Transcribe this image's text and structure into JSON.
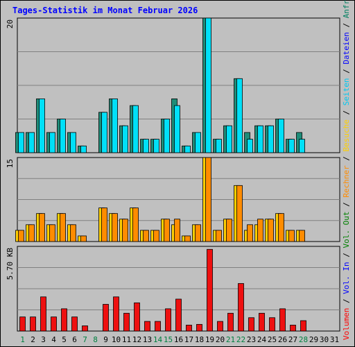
{
  "chart_data": {
    "type": "bar",
    "title": "Tages-Statistik im Monat Februar 2026",
    "days": [
      {
        "label": "1",
        "weekend": true
      },
      {
        "label": "2",
        "weekend": false
      },
      {
        "label": "3",
        "weekend": false
      },
      {
        "label": "4",
        "weekend": false
      },
      {
        "label": "5",
        "weekend": false
      },
      {
        "label": "6",
        "weekend": false
      },
      {
        "label": "7",
        "weekend": true
      },
      {
        "label": "8",
        "weekend": true
      },
      {
        "label": "9",
        "weekend": false
      },
      {
        "label": "10",
        "weekend": false
      },
      {
        "label": "11",
        "weekend": false
      },
      {
        "label": "12",
        "weekend": false
      },
      {
        "label": "13",
        "weekend": false
      },
      {
        "label": "14",
        "weekend": true
      },
      {
        "label": "15",
        "weekend": true
      },
      {
        "label": "16",
        "weekend": false
      },
      {
        "label": "17",
        "weekend": false
      },
      {
        "label": "18",
        "weekend": false
      },
      {
        "label": "19",
        "weekend": false
      },
      {
        "label": "20",
        "weekend": false
      },
      {
        "label": "21",
        "weekend": true
      },
      {
        "label": "22",
        "weekend": true
      },
      {
        "label": "23",
        "weekend": false
      },
      {
        "label": "24",
        "weekend": false
      },
      {
        "label": "25",
        "weekend": false
      },
      {
        "label": "26",
        "weekend": false
      },
      {
        "label": "27",
        "weekend": false
      },
      {
        "label": "28",
        "weekend": true
      },
      {
        "label": "29",
        "weekend": false
      },
      {
        "label": "30",
        "weekend": false
      },
      {
        "label": "31",
        "weekend": false
      }
    ],
    "panels": [
      {
        "ymax_label": "20",
        "ymax": 20,
        "series": [
          {
            "name": "Anfragen",
            "color": "#1e8c78",
            "values": [
              3,
              3,
              8,
              3,
              5,
              3,
              1,
              0,
              6,
              8,
              4,
              7,
              2,
              2,
              5,
              8,
              1,
              3,
              20,
              2,
              4,
              11,
              3,
              4,
              4,
              5,
              2,
              3,
              0,
              0,
              0
            ]
          },
          {
            "name": "Dateien",
            "color": "#00e0f8",
            "values": [
              3,
              3,
              8,
              3,
              5,
              3,
              1,
              0,
              6,
              8,
              4,
              7,
              2,
              2,
              5,
              7,
              1,
              3,
              20,
              2,
              4,
              11,
              2,
              4,
              4,
              5,
              2,
              2,
              0,
              0,
              0
            ]
          },
          {
            "name": "Seiten",
            "color": "#00c8f0",
            "values": [
              0,
              0,
              0,
              0,
              0,
              0,
              0,
              0,
              0,
              0,
              0,
              0,
              0,
              0,
              0,
              0,
              0,
              0,
              0,
              0,
              0,
              0,
              0,
              0,
              0,
              0,
              0,
              0,
              0,
              0,
              0
            ]
          }
        ]
      },
      {
        "ymax_label": "15",
        "ymax": 15,
        "series": [
          {
            "name": "Besuche",
            "color": "#ffd000",
            "values": [
              2,
              3,
              5,
              3,
              5,
              3,
              1,
              0,
              6,
              5,
              4,
              6,
              2,
              2,
              4,
              3,
              1,
              3,
              15,
              2,
              4,
              10,
              2,
              3,
              4,
              5,
              2,
              2,
              0,
              0,
              0
            ]
          },
          {
            "name": "Rechner",
            "color": "#ff8c00",
            "values": [
              2,
              3,
              5,
              3,
              5,
              3,
              1,
              0,
              6,
              5,
              4,
              6,
              2,
              2,
              4,
              4,
              1,
              3,
              15,
              2,
              4,
              10,
              3,
              4,
              4,
              5,
              2,
              2,
              0,
              0,
              0
            ]
          }
        ]
      },
      {
        "ymax_label": "5.70 KB",
        "ymax": 5.7,
        "series": [
          {
            "name": "Volumen",
            "color": "#ee1010",
            "values": [
              0.95,
              0.95,
              2.3,
              0.95,
              1.5,
              0.95,
              0.35,
              0,
              1.8,
              2.3,
              1.2,
              1.9,
              0.65,
              0.65,
              1.5,
              2.15,
              0.4,
              0.45,
              5.5,
              0.65,
              1.2,
              3.2,
              0.9,
              1.2,
              0.9,
              1.5,
              0.4,
              0.7,
              0,
              0,
              0
            ]
          }
        ]
      }
    ],
    "legend_right": [
      {
        "text": "Volumen",
        "color": "#ff0000"
      },
      {
        "text": " / ",
        "color": "#000000"
      },
      {
        "text": "Vol. In",
        "color": "#0000ff"
      },
      {
        "text": " / ",
        "color": "#000000"
      },
      {
        "text": "Vol. Out",
        "color": "#008000"
      },
      {
        "text": " / ",
        "color": "#000000"
      },
      {
        "text": "Rechner",
        "color": "#ff8c00"
      },
      {
        "text": " / ",
        "color": "#000000"
      },
      {
        "text": "Besuche",
        "color": "#ffd000"
      },
      {
        "text": " / ",
        "color": "#000000"
      },
      {
        "text": "Seiten",
        "color": "#00c8f0"
      },
      {
        "text": " / ",
        "color": "#000000"
      },
      {
        "text": "Dateien",
        "color": "#0000ff"
      },
      {
        "text": " / ",
        "color": "#000000"
      },
      {
        "text": "Anfragen",
        "color": "#008060"
      }
    ],
    "colors": {
      "background": "#c0c0c0",
      "grid": "#808080",
      "weekday_label": "#000000",
      "weekend_label": "#008040"
    }
  }
}
